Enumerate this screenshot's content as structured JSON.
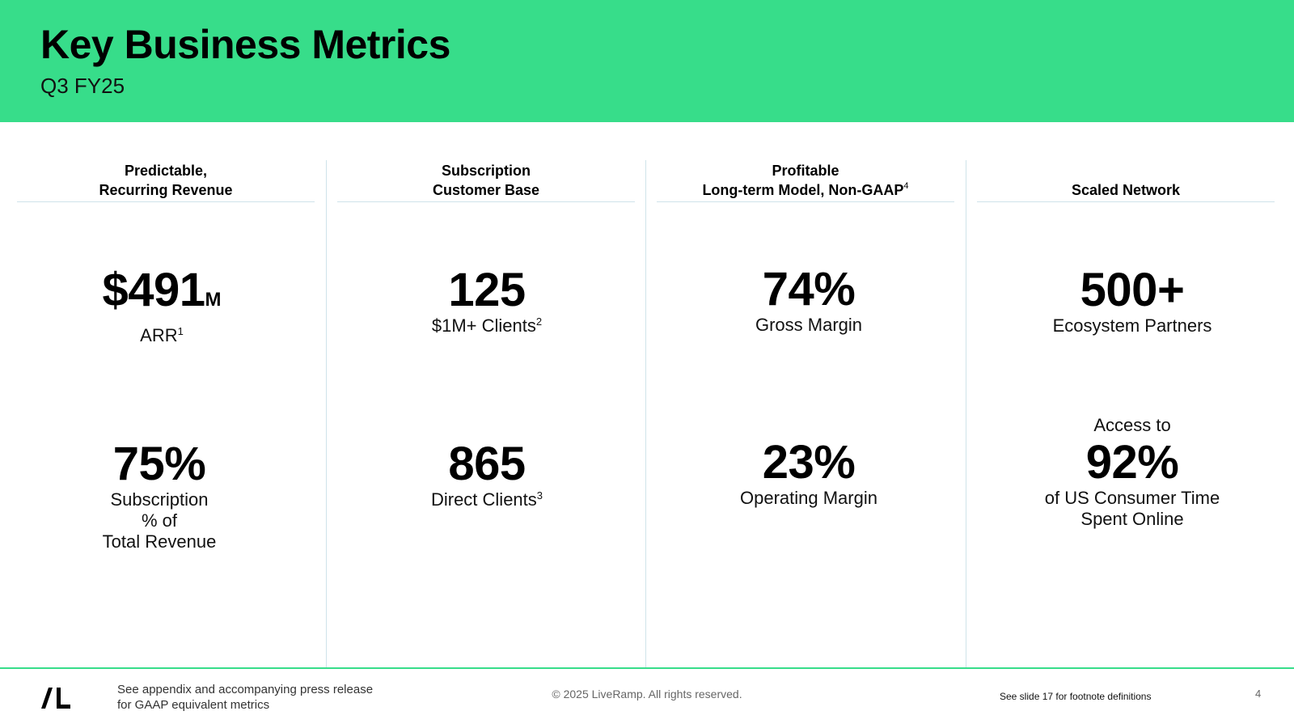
{
  "header": {
    "title": "Key Business Metrics",
    "subtitle": "Q3 FY25"
  },
  "columns": [
    {
      "header_lines": [
        "Predictable,",
        "Recurring Revenue"
      ],
      "metrics": [
        {
          "value": "$491",
          "unit": "M",
          "label": "ARR",
          "footnote": "1"
        },
        {
          "value": "75%",
          "label_lines": [
            "Subscription",
            "% of",
            "Total Revenue"
          ]
        }
      ]
    },
    {
      "header_lines": [
        "Subscription",
        "Customer Base"
      ],
      "metrics": [
        {
          "value": "125",
          "label": "$1M+ Clients",
          "footnote": "2"
        },
        {
          "value": "865",
          "label": "Direct Clients",
          "footnote": "3"
        }
      ]
    },
    {
      "header_lines": [
        "Profitable",
        "Long-term Model, Non-GAAP"
      ],
      "header_footnote": "4",
      "metrics": [
        {
          "value": "74%",
          "label": "Gross Margin"
        },
        {
          "value": "23%",
          "label": "Operating Margin"
        }
      ]
    },
    {
      "header_lines": [
        "Scaled Network"
      ],
      "metrics": [
        {
          "value": "500+",
          "label": "Ecosystem Partners"
        },
        {
          "prefix": "Access to",
          "value": "92%",
          "label_lines": [
            "of US Consumer Time",
            "Spent Online"
          ]
        }
      ]
    }
  ],
  "footer": {
    "note_lines": [
      "See appendix and accompanying press release",
      "for GAAP equivalent metrics"
    ],
    "copyright": "© 2025 LiveRamp. All rights reserved.",
    "footnote_ref": "See slide 17 for footnote definitions",
    "page_number": "4",
    "logo_icon": "liveramp-logo-icon"
  },
  "colors": {
    "brand_green": "#37dd8a",
    "divider": "#cfe3ea"
  }
}
